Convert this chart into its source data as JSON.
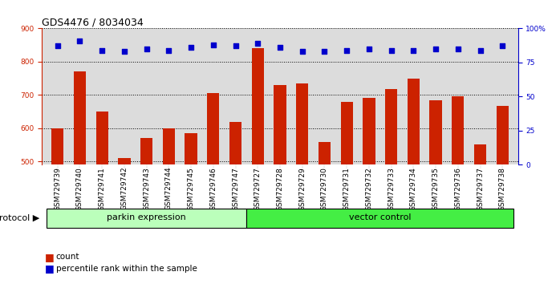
{
  "title": "GDS4476 / 8034034",
  "samples": [
    "GSM729739",
    "GSM729740",
    "GSM729741",
    "GSM729742",
    "GSM729743",
    "GSM729744",
    "GSM729745",
    "GSM729746",
    "GSM729747",
    "GSM729727",
    "GSM729728",
    "GSM729729",
    "GSM729730",
    "GSM729731",
    "GSM729732",
    "GSM729733",
    "GSM729734",
    "GSM729735",
    "GSM729736",
    "GSM729737",
    "GSM729738"
  ],
  "counts": [
    600,
    770,
    650,
    510,
    570,
    600,
    585,
    705,
    618,
    840,
    730,
    735,
    558,
    678,
    690,
    718,
    748,
    685,
    696,
    551,
    668
  ],
  "percentile": [
    87,
    91,
    84,
    83,
    85,
    84,
    86,
    88,
    87,
    89,
    86,
    83,
    83,
    84,
    85,
    84,
    84,
    85,
    85,
    84,
    87
  ],
  "parkin_count": 9,
  "vector_count": 12,
  "parkin_label": "parkin expression",
  "vector_label": "vector control",
  "protocol_label": "protocol",
  "legend_count": "count",
  "legend_percentile": "percentile rank within the sample",
  "ylim_left": [
    490,
    900
  ],
  "ylim_right": [
    0,
    100
  ],
  "yticks_left": [
    500,
    600,
    700,
    800,
    900
  ],
  "yticks_right": [
    0,
    25,
    50,
    75,
    100
  ],
  "bar_color": "#CC2200",
  "dot_color": "#0000CC",
  "parkin_bg": "#BBFFBB",
  "vector_bg": "#44EE44",
  "bg_color": "#DCDCDC",
  "grid_color": "#000000",
  "title_fontsize": 9,
  "tick_fontsize": 6.5,
  "label_fontsize": 8
}
